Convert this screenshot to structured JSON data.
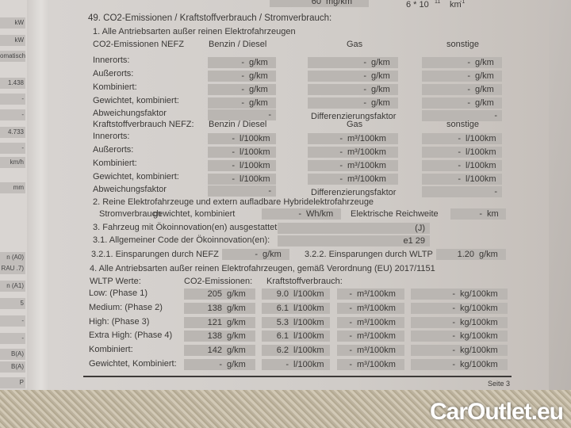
{
  "top_row": {
    "rde_value": "60",
    "rde_unit": "mg/km",
    "pn_value": "6 * 10",
    "pn_exp": "11",
    "pn_unit": "km",
    "pn_unit_exp": "-1"
  },
  "heading": "49. CO2-Emissionen / Kraftstoffverbrauch / Stromverbrauch:",
  "section1": {
    "title": "1. Alle Antriebsarten außer reinen Elektrofahrzeugen",
    "co2_header": {
      "label": "CO2-Emissionen NEFZ",
      "col1": "Benzin / Diesel",
      "col2": "Gas",
      "col3": "sonstige"
    },
    "co2_rows": [
      {
        "label": "Innerorts:",
        "v1": "-",
        "u1": "g/km",
        "v2": "-",
        "u2": "g/km",
        "v3": "-",
        "u3": "g/km"
      },
      {
        "label": "Außerorts:",
        "v1": "-",
        "u1": "g/km",
        "v2": "-",
        "u2": "g/km",
        "v3": "-",
        "u3": "g/km"
      },
      {
        "label": "Kombiniert:",
        "v1": "-",
        "u1": "g/km",
        "v2": "-",
        "u2": "g/km",
        "v3": "-",
        "u3": "g/km"
      },
      {
        "label": "Gewichtet, kombiniert:",
        "v1": "-",
        "u1": "g/km",
        "v2": "-",
        "u2": "g/km",
        "v3": "-",
        "u3": "g/km"
      }
    ],
    "co2_factor": {
      "label": "Abweichungsfaktor",
      "value": "-",
      "label2": "Differenzierungsfaktor",
      "value2": "-"
    },
    "fuel_header": {
      "label": "Kraftstoffverbrauch NEFZ:",
      "col1": "Benzin / Diesel",
      "col2": "Gas",
      "col3": "sonstige"
    },
    "fuel_rows": [
      {
        "label": "Innerorts:",
        "v1": "-",
        "u1": "l/100km",
        "v2": "-",
        "u2": "m³/100km",
        "v3": "-",
        "u3": "l/100km"
      },
      {
        "label": "Außerorts:",
        "v1": "-",
        "u1": "l/100km",
        "v2": "-",
        "u2": "m³/100km",
        "v3": "-",
        "u3": "l/100km"
      },
      {
        "label": "Kombiniert:",
        "v1": "-",
        "u1": "l/100km",
        "v2": "-",
        "u2": "m³/100km",
        "v3": "-",
        "u3": "l/100km"
      },
      {
        "label": "Gewichtet, kombiniert:",
        "v1": "-",
        "u1": "l/100km",
        "v2": "-",
        "u2": "m³/100km",
        "v3": "-",
        "u3": "l/100km"
      }
    ],
    "fuel_factor": {
      "label": "Abweichungsfaktor",
      "value": "-",
      "label2": "Differenzierungsfaktor",
      "value2": "-"
    }
  },
  "section2": {
    "title": "2. Reine Elektrofahrzeuge und extern aufladbare Hybridelektrofahrzeuge",
    "label": "Stromverbrauch",
    "sublabel": "gewichtet, kombiniert",
    "value": "-",
    "unit": "Wh/km",
    "range_label": "Elektrische Reichweite",
    "range_value": "-",
    "range_unit": "km"
  },
  "section3": {
    "label": "3. Fahrzeug mit Ökoinnovation(en) ausgestattet:",
    "value": "(J)",
    "code_label": "3.1. Allgemeiner Code der Ökoinnovation(en):",
    "code_value": "e1 29",
    "nefz_label": "3.2.1. Einsparungen durch NEFZ",
    "nefz_value": "-",
    "nefz_unit": "g/km",
    "wltp_label": "3.2.2. Einsparungen durch WLTP",
    "wltp_value": "1.20",
    "wltp_unit": "g/km"
  },
  "section4": {
    "title": "4. Alle Antriebsarten außer reinen Elektrofahrzeugen, gemäß Verordnung (EU) 2017/1151",
    "col0": "WLTP Werte:",
    "col1": "CO2-Emissionen:",
    "col2": "Kraftstoffverbrauch:",
    "rows": [
      {
        "label": "Low: (Phase 1)",
        "co2": "205",
        "co2_unit": "g/km",
        "fuel": "9.0",
        "fuel_unit": "l/100km",
        "gas": "-",
        "gas_unit": "m³/100km",
        "other": "-",
        "other_unit": "kg/100km"
      },
      {
        "label": "Medium: (Phase 2)",
        "co2": "138",
        "co2_unit": "g/km",
        "fuel": "6.1",
        "fuel_unit": "l/100km",
        "gas": "-",
        "gas_unit": "m³/100km",
        "other": "-",
        "other_unit": "kg/100km"
      },
      {
        "label": "High: (Phase 3)",
        "co2": "121",
        "co2_unit": "g/km",
        "fuel": "5.3",
        "fuel_unit": "l/100km",
        "gas": "-",
        "gas_unit": "m³/100km",
        "other": "-",
        "other_unit": "kg/100km"
      },
      {
        "label": "Extra High: (Phase 4)",
        "co2": "138",
        "co2_unit": "g/km",
        "fuel": "6.1",
        "fuel_unit": "l/100km",
        "gas": "-",
        "gas_unit": "m³/100km",
        "other": "-",
        "other_unit": "kg/100km"
      },
      {
        "label": "Kombiniert:",
        "co2": "142",
        "co2_unit": "g/km",
        "fuel": "6.2",
        "fuel_unit": "l/100km",
        "gas": "-",
        "gas_unit": "m³/100km",
        "other": "-",
        "other_unit": "kg/100km"
      },
      {
        "label": "Gewichtet, Kombiniert:",
        "co2": "-",
        "co2_unit": "g/km",
        "fuel": "-",
        "fuel_unit": "l/100km",
        "gas": "-",
        "gas_unit": "m³/100km",
        "other": "-",
        "other_unit": "kg/100km"
      }
    ]
  },
  "footer": {
    "page": "Seite 3"
  },
  "left_page": [
    "kW",
    "kW",
    "omatisch",
    "1.438",
    "-",
    "-",
    "4.733",
    "-",
    "km/h",
    "mm",
    "n (A0)",
    "RAU .7)",
    "n (A1)",
    "5",
    "-",
    "-",
    "B(A)",
    "B(A)",
    "P"
  ],
  "watermark": "CarOutlet.eu"
}
